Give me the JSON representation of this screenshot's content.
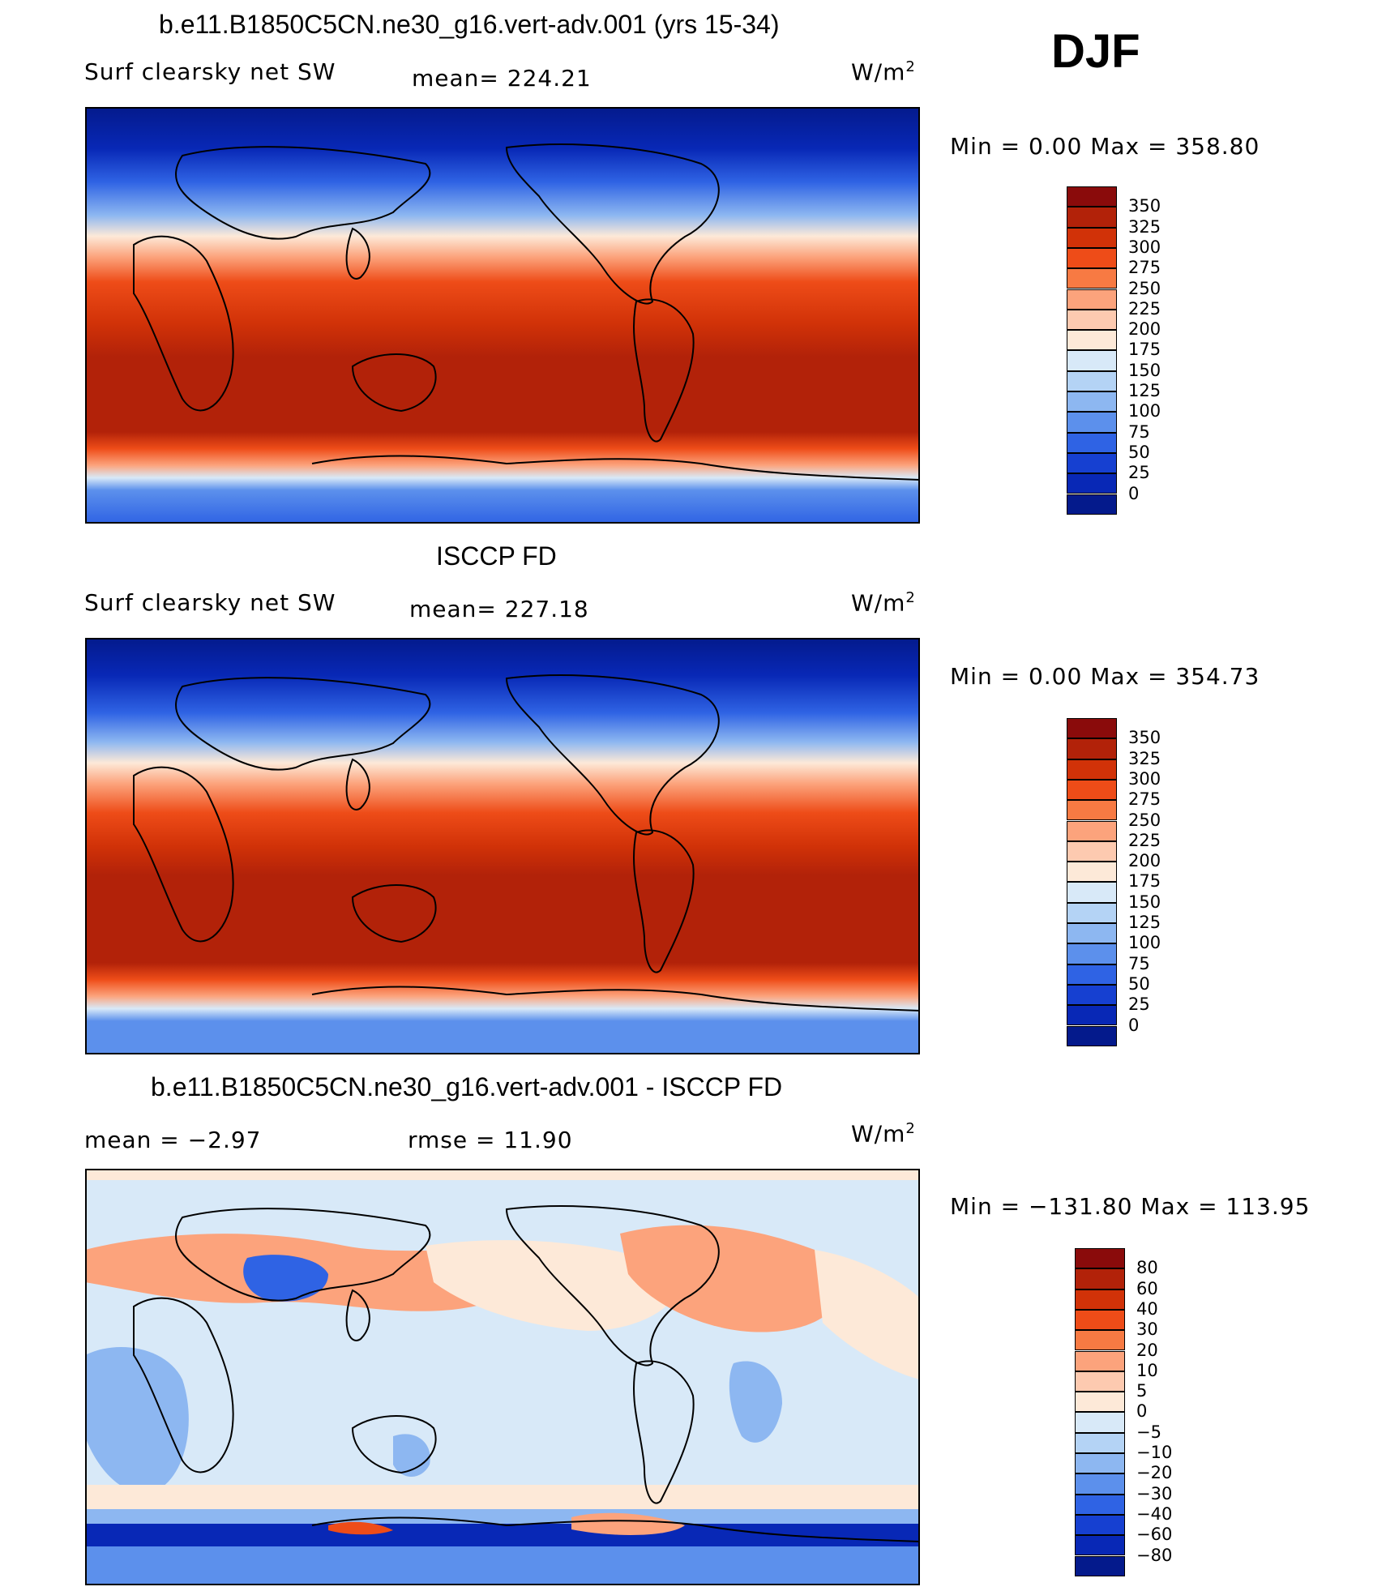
{
  "season": "DJF",
  "panels": [
    {
      "title": "b.e11.B1850C5CN.ne30_g16.vert-adv.001 (yrs 15-34)",
      "left_label": "Surf clearsky net SW",
      "center_label": "mean= 224.21",
      "units": "W/m",
      "units_sup": "2",
      "minmax": "Min =     0.00 Max = 358.80",
      "colorbar": {
        "labels": [
          "350",
          "325",
          "300",
          "275",
          "250",
          "225",
          "200",
          "175",
          "150",
          "125",
          "100",
          "75",
          "50",
          "25",
          "0"
        ],
        "colors": [
          "#8a0b0b",
          "#b22209",
          "#d13208",
          "#ee4c18",
          "#f77a43",
          "#fca37c",
          "#fdcab0",
          "#fde9d8",
          "#d8e9f8",
          "#b4d3f5",
          "#8db7f1",
          "#5c90ec",
          "#2f63e4",
          "#1640d1",
          "#0828b6",
          "#041a8c"
        ]
      }
    },
    {
      "title": "ISCCP FD",
      "left_label": "Surf clearsky net SW",
      "center_label": "mean= 227.18",
      "units": "W/m",
      "units_sup": "2",
      "minmax": "Min =     0.00 Max = 354.73",
      "colorbar": {
        "labels": [
          "350",
          "325",
          "300",
          "275",
          "250",
          "225",
          "200",
          "175",
          "150",
          "125",
          "100",
          "75",
          "50",
          "25",
          "0"
        ],
        "colors": [
          "#8a0b0b",
          "#b22209",
          "#d13208",
          "#ee4c18",
          "#f77a43",
          "#fca37c",
          "#fdcab0",
          "#fde9d8",
          "#d8e9f8",
          "#b4d3f5",
          "#8db7f1",
          "#5c90ec",
          "#2f63e4",
          "#1640d1",
          "#0828b6",
          "#041a8c"
        ]
      }
    },
    {
      "title": "b.e11.B1850C5CN.ne30_g16.vert-adv.001 - ISCCP FD",
      "left_label": "mean =    −2.97",
      "center_label": "rmse =    11.90",
      "units": "W/m",
      "units_sup": "2",
      "minmax": "Min = −131.80 Max = 113.95",
      "colorbar": {
        "labels": [
          "80",
          "60",
          "40",
          "30",
          "20",
          "10",
          "5",
          "0",
          "−5",
          "−10",
          "−20",
          "−30",
          "−40",
          "−60",
          "−80"
        ],
        "colors": [
          "#8a0b0b",
          "#b22209",
          "#d13208",
          "#ee4c18",
          "#f77a43",
          "#fca37c",
          "#fdcab0",
          "#fde9d8",
          "#d8e9f8",
          "#b4d3f5",
          "#8db7f1",
          "#5c90ec",
          "#2f63e4",
          "#1640d1",
          "#0828b6",
          "#041a8c"
        ]
      }
    }
  ]
}
